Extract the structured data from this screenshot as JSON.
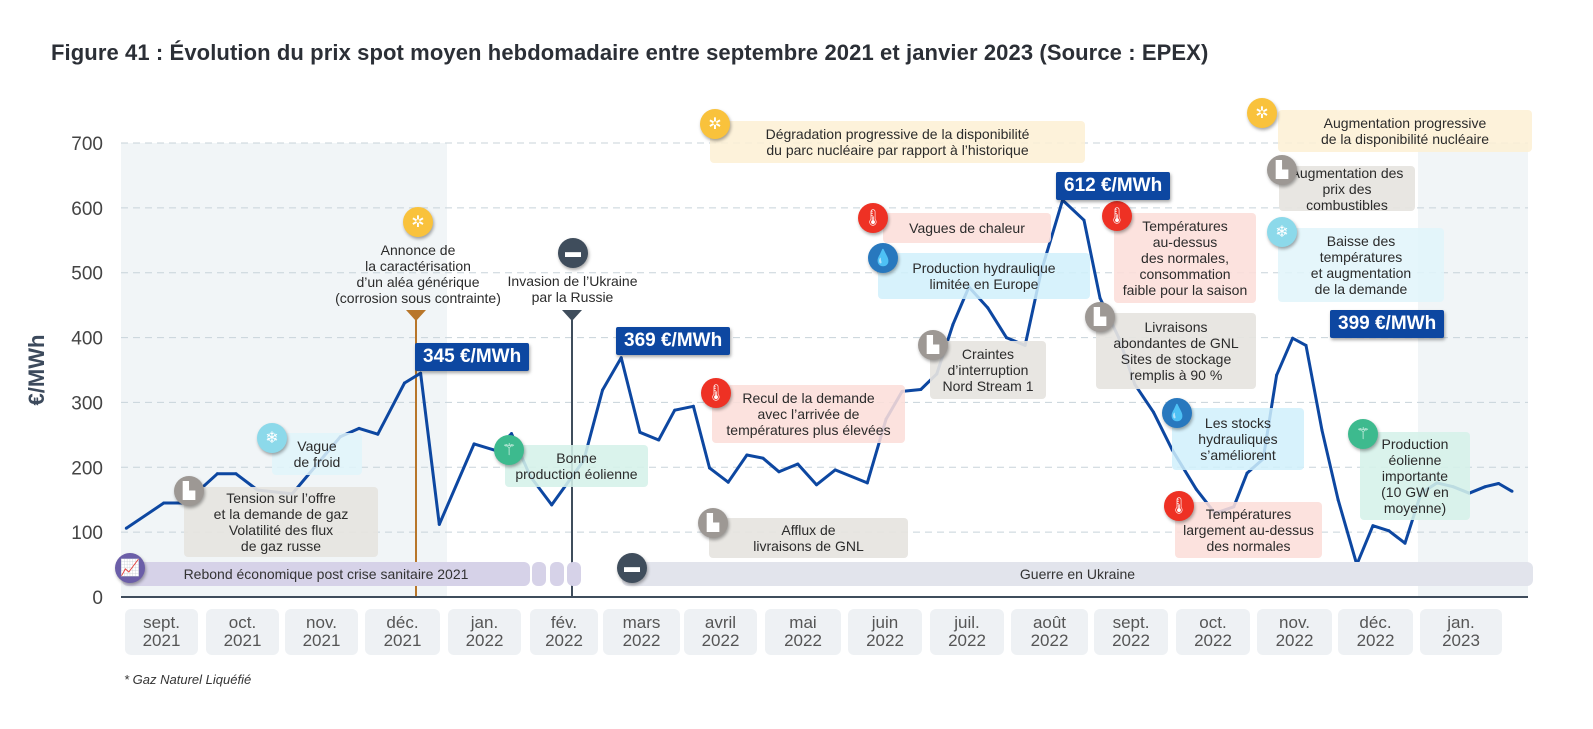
{
  "title": "Figure 41 : Évolution du prix spot moyen hebdomadaire entre septembre 2021 et janvier 2023 (Source : EPEX)",
  "footnote": "* Gaz Naturel Liquéfié",
  "chart_data": {
    "type": "line",
    "title": "Figure 41 : Évolution du prix spot moyen hebdomadaire entre septembre 2021 et janvier 2023 (Source : EPEX)",
    "xlabel": "",
    "ylabel": "€/MWh",
    "ylim": [
      0,
      700
    ],
    "yticks": [
      0,
      100,
      200,
      300,
      400,
      500,
      600,
      700
    ],
    "grid": true,
    "x_tick_labels": [
      "sept.\n2021",
      "oct.\n2021",
      "nov.\n2021",
      "déc.\n2021",
      "jan.\n2022",
      "fév.\n2022",
      "mars\n2022",
      "avril\n2022",
      "mai\n2022",
      "juin\n2022",
      "juil.\n2022",
      "août\n2022",
      "sept.\n2022",
      "oct.\n2022",
      "nov.\n2022",
      "déc.\n2022",
      "jan.\n2023"
    ],
    "x_unit": "weeks from start of sept. 2021",
    "series": [
      {
        "name": "Prix spot moyen hebdomadaire",
        "color": "#0d47a1",
        "x": [
          0.2,
          1.6,
          2.4,
          3.6,
          4.3,
          5.1,
          6.4,
          7.4,
          8.2,
          8.9,
          9.6,
          10.6,
          11.2,
          11.9,
          13.2,
          14.0,
          14.6,
          15.3,
          16.1,
          17.3,
          18.0,
          18.7,
          19.4,
          20.1,
          20.7,
          21.4,
          22.0,
          22.7,
          23.4,
          24.0,
          24.6,
          25.3,
          26.0,
          26.7,
          27.9,
          28.6,
          29.2,
          29.9,
          30.5,
          31.1,
          31.7,
          32.4,
          33.1,
          33.8,
          34.4,
          35.2,
          36.0,
          36.6,
          37.3,
          37.9,
          38.6,
          39.3,
          40.2,
          40.9,
          41.6,
          42.1,
          42.7,
          43.2,
          43.8,
          44.3,
          44.9,
          45.5,
          46.2,
          46.8,
          47.4,
          48.0,
          48.6,
          49.2,
          49.8,
          50.4,
          51.0,
          51.5,
          52.0
        ],
        "values": [
          106,
          145,
          145,
          190,
          190,
          165,
          159,
          208,
          247,
          260,
          251,
          330,
          345,
          112,
          236,
          226,
          252,
          186,
          142,
          211,
          319,
          369,
          254,
          242,
          288,
          294,
          199,
          177,
          219,
          214,
          193,
          205,
          173,
          196,
          176,
          274,
          317,
          320,
          344,
          420,
          478,
          446,
          400,
          388,
          502,
          612,
          581,
          461,
          400,
          328,
          285,
          227,
          166,
          129,
          139,
          191,
          213,
          342,
          399,
          388,
          257,
          150,
          50,
          110,
          102,
          83,
          160,
          176,
          170,
          160,
          170,
          175,
          163
        ]
      }
    ],
    "data_labels": [
      {
        "label": "345 €/MWh",
        "value": 345,
        "period": "déc. 2021"
      },
      {
        "label": "369 €/MWh",
        "value": 369,
        "period": "mars 2022"
      },
      {
        "label": "612 €/MWh",
        "value": 612,
        "period": "août 2022"
      },
      {
        "label": "399 €/MWh",
        "value": 399,
        "period": "déc. 2022"
      }
    ],
    "vertical_markers": [
      {
        "label": "Annonce de\nla caractérisation\nd’un aléa générique\n(corrosion sous contrainte)",
        "period": "déc. 2021",
        "color": "#b8762a",
        "icon": "nuclear-icon"
      },
      {
        "label": "Invasion de l’Ukraine\npar la Russie",
        "period": "fév. 2022",
        "color": "#3f4d5c",
        "icon": "tank-icon"
      }
    ],
    "bands": [
      {
        "label": "Rebond économique post crise sanitaire 2021",
        "icon": "growth-chart-icon",
        "color": "#d6d2e8"
      },
      {
        "label": "Guerre en Ukraine",
        "icon": "tank-icon",
        "color": "#e2e4ec"
      }
    ],
    "annotations": [
      {
        "id": "tension",
        "text": "Tension sur l’offre\net la demande de gaz\nVolatilité des flux\nde gaz russe",
        "icon": "gas-plant-icon",
        "theme": "gray"
      },
      {
        "id": "froid",
        "text": "Vague\nde froid",
        "icon": "snowflake-icon",
        "theme": "lblue"
      },
      {
        "id": "eolien1",
        "text": "Bonne\nproduction éolienne",
        "icon": "wind-turbine-icon",
        "theme": "green"
      },
      {
        "id": "recul",
        "text": "Recul de la demande\navec l’arrivée de\ntempératures plus élevées",
        "icon": "thermometer-icon",
        "theme": "red"
      },
      {
        "id": "gnl1",
        "text": "Afflux de\nlivraisons de GNL",
        "icon": "gas-plant-icon",
        "theme": "gray"
      },
      {
        "id": "degradation",
        "text": "Dégradation progressive de la disponibilité\ndu parc nucléaire par rapport à l’historique",
        "icon": "nuclear-icon",
        "theme": "yellow"
      },
      {
        "id": "chaleur",
        "text": "Vagues de chaleur",
        "icon": "thermometer-icon",
        "theme": "red"
      },
      {
        "id": "hydro1",
        "text": "Production hydraulique\nlimitée en Europe",
        "icon": "water-drop-icon",
        "theme": "blue"
      },
      {
        "id": "nordstream",
        "text": "Craintes\nd’interruption\nNord Stream 1",
        "icon": "gas-plant-icon",
        "theme": "gray"
      },
      {
        "id": "temp1",
        "text": "Températures\nau-dessus\ndes normales,\nconsommation\nfaible pour la saison",
        "icon": "thermometer-icon",
        "theme": "red"
      },
      {
        "id": "gnl2",
        "text": "Livraisons\nabondantes de GNL\nSites de stockage\nremplis à 90 %",
        "icon": "gas-plant-icon",
        "theme": "gray"
      },
      {
        "id": "hydro2",
        "text": "Les stocks\nhydrauliques\ns’améliorent",
        "icon": "water-drop-icon",
        "theme": "blue"
      },
      {
        "id": "temp2",
        "text": "Températures\nlargement au-dessus\ndes normales",
        "icon": "thermometer-icon",
        "theme": "red"
      },
      {
        "id": "nucleaire",
        "text": "Augmentation progressive\nde la disponibilité nucléaire",
        "icon": "nuclear-icon",
        "theme": "yellow"
      },
      {
        "id": "combustibles",
        "text": "Augmentation des\nprix des combustibles",
        "icon": "gas-plant-icon",
        "theme": "gray"
      },
      {
        "id": "baisse",
        "text": "Baisse des\ntempératures\net augmentation\nde la demande",
        "icon": "snowflake-icon",
        "theme": "lblue"
      },
      {
        "id": "eolien2",
        "text": "Production\néolienne\nimportante\n(10 GW en\nmoyenne)",
        "icon": "wind-turbine-icon",
        "theme": "green"
      }
    ]
  }
}
